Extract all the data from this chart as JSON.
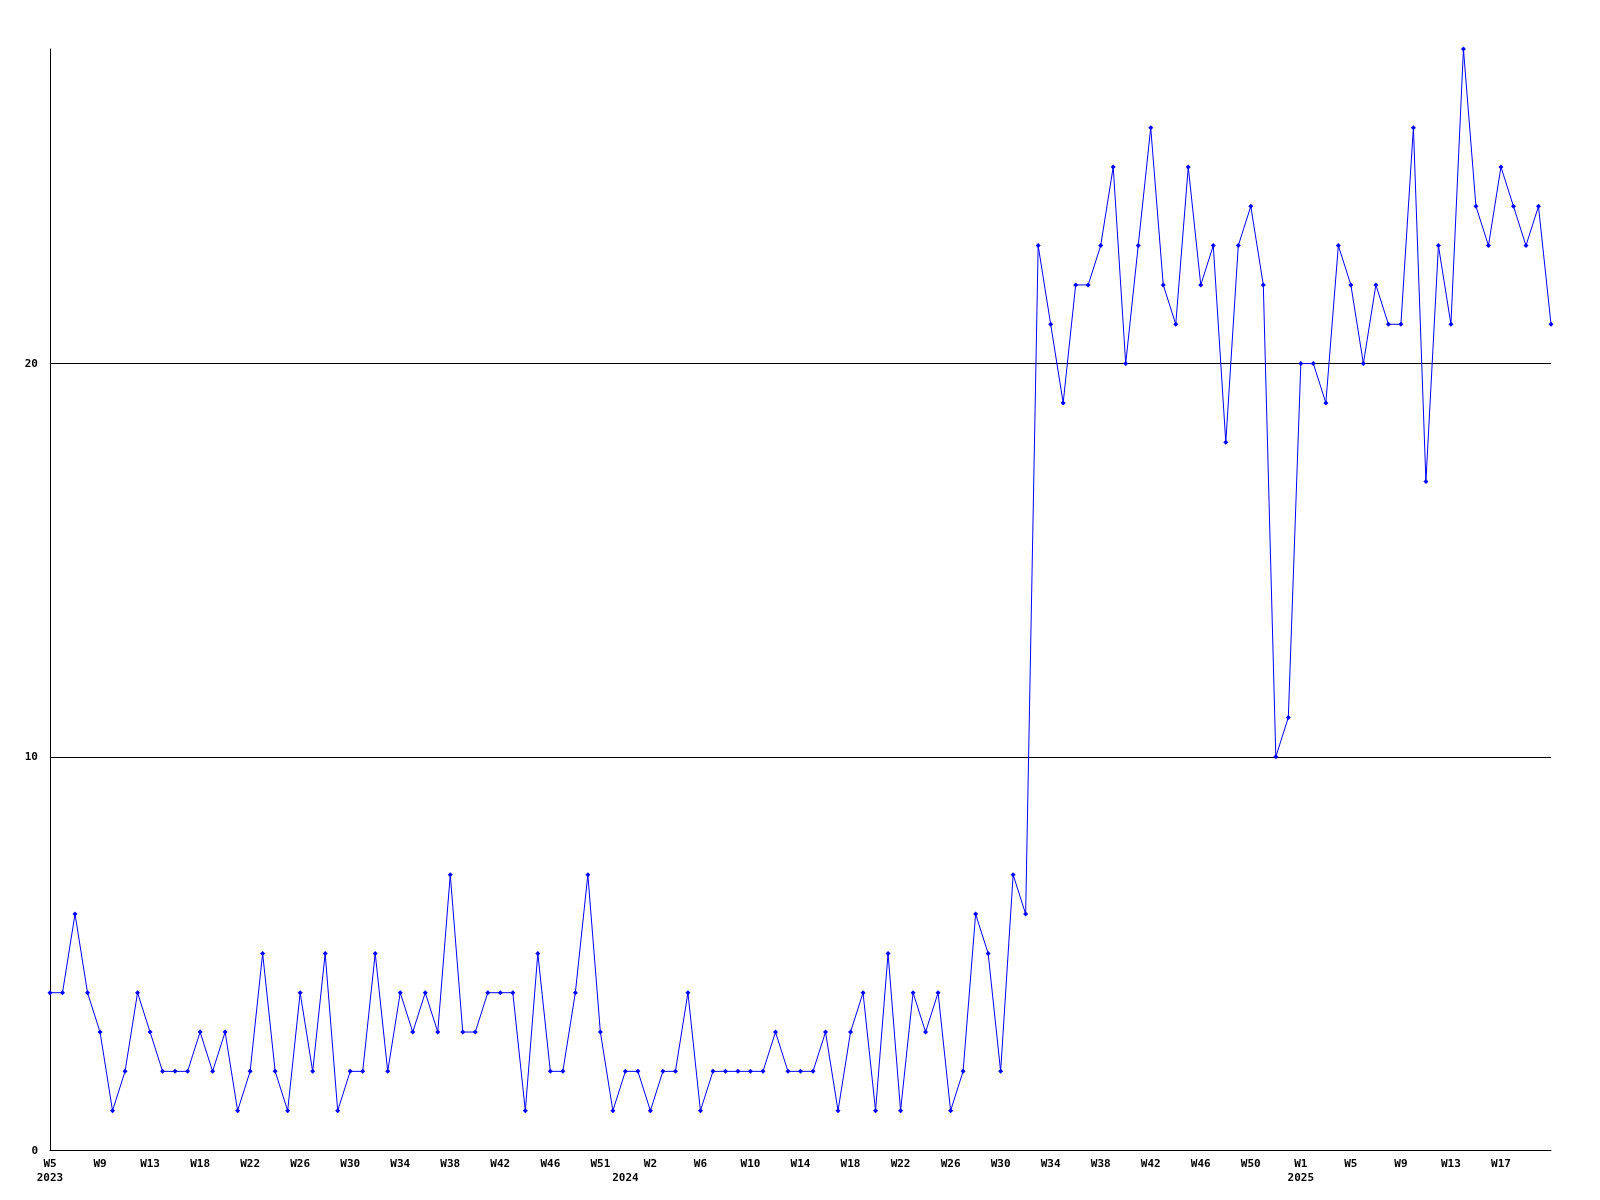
{
  "chart_data": {
    "type": "line",
    "categories": [
      "W5\n2023",
      null,
      null,
      null,
      "W9",
      null,
      null,
      null,
      "W13",
      null,
      null,
      null,
      "W18",
      null,
      null,
      null,
      "W22",
      null,
      null,
      null,
      "W26",
      null,
      null,
      null,
      "W30",
      null,
      null,
      null,
      "W34",
      null,
      null,
      null,
      "W38",
      null,
      null,
      null,
      "W42",
      null,
      null,
      null,
      "W46",
      null,
      null,
      null,
      "W51",
      null,
      "\n2024",
      null,
      "W2",
      null,
      null,
      null,
      "W6",
      null,
      null,
      null,
      "W10",
      null,
      null,
      null,
      "W14",
      null,
      null,
      null,
      "W18",
      null,
      null,
      null,
      "W22",
      null,
      null,
      null,
      "W26",
      null,
      null,
      null,
      "W30",
      null,
      null,
      null,
      "W34",
      null,
      null,
      null,
      "W38",
      null,
      null,
      null,
      "W42",
      null,
      null,
      null,
      "W46",
      null,
      null,
      null,
      "W50",
      null,
      null,
      null,
      "W1\n2025",
      null,
      null,
      null,
      "W5",
      null,
      null,
      null,
      "W9",
      null,
      null,
      null,
      "W13",
      null,
      null,
      null,
      "W17",
      null,
      null,
      null,
      null
    ],
    "series": [
      {
        "color": "#0000ff",
        "values": [
          4,
          4,
          6,
          4,
          3,
          1,
          2,
          4,
          3,
          2,
          2,
          2,
          3,
          2,
          3,
          1,
          2,
          5,
          2,
          1,
          4,
          2,
          5,
          1,
          2,
          2,
          5,
          2,
          4,
          3,
          4,
          3,
          7,
          3,
          3,
          4,
          4,
          4,
          1,
          5,
          2,
          2,
          4,
          7,
          3,
          1,
          2,
          2,
          1,
          2,
          2,
          4,
          1,
          2,
          2,
          2,
          2,
          2,
          3,
          2,
          2,
          2,
          3,
          1,
          3,
          4,
          1,
          5,
          1,
          4,
          3,
          4,
          1,
          2,
          6,
          5,
          2,
          7,
          6,
          23,
          21,
          19,
          22,
          22,
          23,
          25,
          20,
          23,
          26,
          22,
          21,
          25,
          22,
          23,
          18,
          23,
          24,
          22,
          10,
          11,
          20,
          20,
          19,
          23,
          22,
          20,
          22,
          21,
          21,
          26,
          17,
          23,
          21,
          28,
          24,
          23,
          25,
          24,
          23,
          24,
          21
        ]
      }
    ],
    "ylim": [
      0,
      28
    ],
    "yticks": [
      0,
      10,
      20
    ],
    "grid": "y",
    "marker": "diamond",
    "line_style": "solid"
  }
}
